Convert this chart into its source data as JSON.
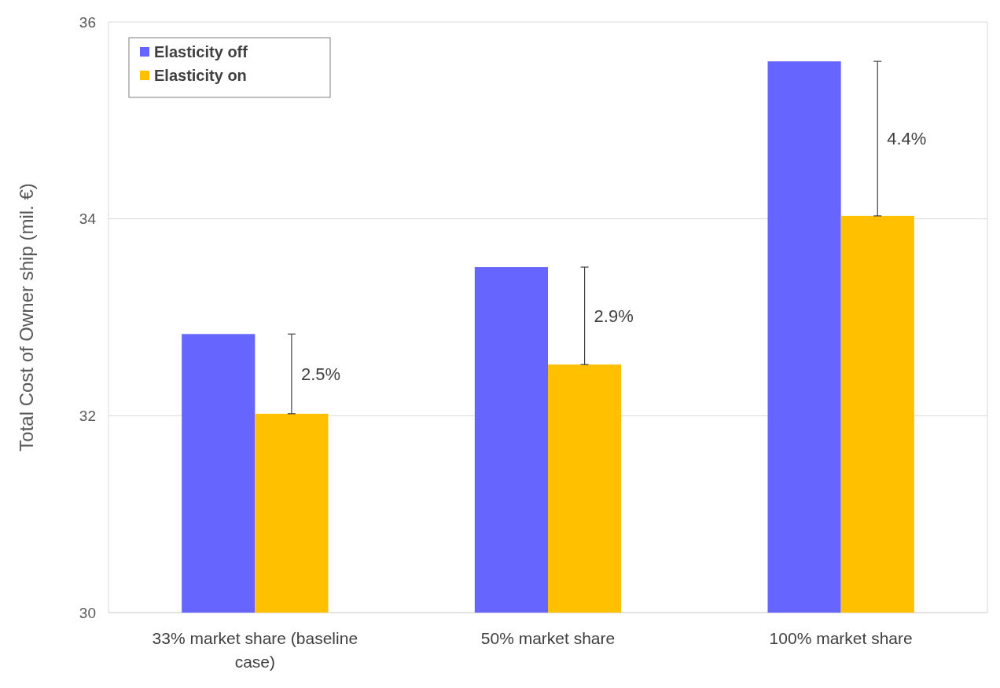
{
  "chart_data": {
    "type": "bar",
    "ylabel": "Total Cost of Owner ship (mil. €)",
    "categories": [
      "33% market share (baseline case)",
      "50% market share",
      "100% market share"
    ],
    "series": [
      {
        "name": "Elasticity off",
        "color": "#6666ff",
        "values": [
          32.83,
          33.51,
          35.6
        ]
      },
      {
        "name": "Elasticity on",
        "color": "#ffc000",
        "values": [
          32.02,
          32.52,
          34.03
        ],
        "errors": [
          [
            32.02,
            32.83
          ],
          [
            32.52,
            33.51
          ],
          [
            34.03,
            35.6
          ]
        ]
      }
    ],
    "ylim": [
      30,
      36
    ],
    "yticks": [
      30,
      32,
      34,
      36
    ],
    "grid": "y",
    "legend": "top left",
    "annotations": [
      "2.5%",
      "2.9%",
      "4.4%"
    ]
  }
}
